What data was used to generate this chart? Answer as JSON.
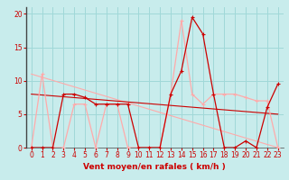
{
  "bg_color": "#c8ecec",
  "grid_color": "#a0d8d8",
  "line1_color": "#ffaaaa",
  "line2_color": "#cc0000",
  "xlabel": "Vent moyen/en rafales ( km/h )",
  "ylabel_ticks": [
    0,
    5,
    10,
    15,
    20
  ],
  "xlim": [
    -0.5,
    23.5
  ],
  "ylim": [
    0,
    21
  ],
  "x_ticks": [
    0,
    1,
    2,
    3,
    4,
    5,
    6,
    7,
    8,
    9,
    10,
    11,
    12,
    13,
    14,
    15,
    16,
    17,
    18,
    19,
    20,
    21,
    22,
    23
  ],
  "line1_x": [
    0,
    1,
    2,
    3,
    4,
    5,
    6,
    7,
    8,
    9,
    10,
    11,
    12,
    13,
    14,
    15,
    16,
    17,
    18,
    19,
    20,
    21,
    22,
    23
  ],
  "line1_y": [
    0,
    11,
    0,
    0,
    6.5,
    6.5,
    0,
    6.5,
    6.5,
    0,
    0,
    0,
    0,
    8,
    19,
    8,
    6.5,
    8,
    8,
    8,
    7.5,
    7,
    7,
    0
  ],
  "line2_x": [
    0,
    1,
    2,
    3,
    4,
    5,
    6,
    7,
    8,
    9,
    10,
    11,
    12,
    13,
    14,
    15,
    16,
    17,
    18,
    19,
    20,
    21,
    22,
    23
  ],
  "line2_y": [
    0,
    0,
    0,
    8,
    8,
    7.5,
    6.5,
    6.5,
    6.5,
    6.5,
    0,
    0,
    0,
    8,
    11.5,
    19.5,
    17,
    8,
    0,
    0,
    1,
    0,
    6,
    9.5
  ],
  "trend1_x": [
    0,
    23
  ],
  "trend1_y": [
    11,
    0
  ],
  "trend2_x": [
    0,
    23
  ],
  "trend2_y": [
    8,
    5
  ],
  "label_fontsize": 6.5,
  "tick_fontsize": 5.5
}
